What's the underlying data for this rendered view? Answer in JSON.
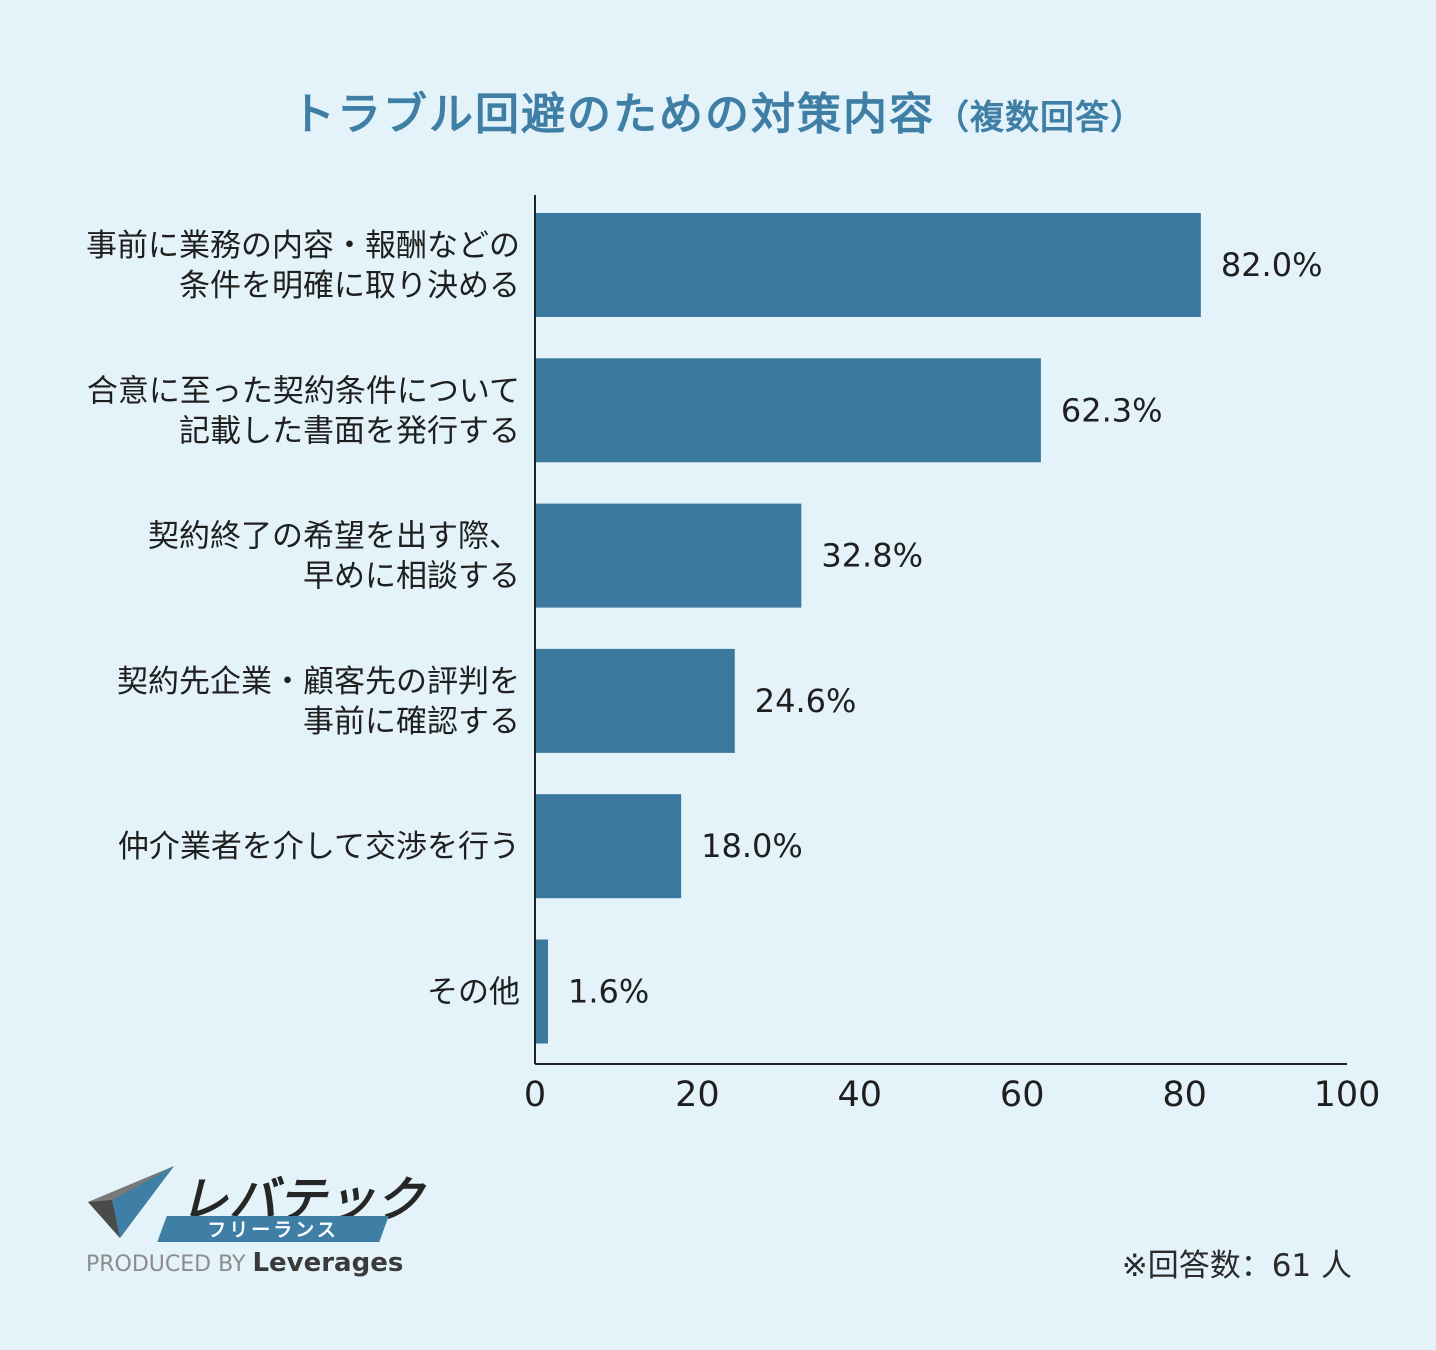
{
  "title": "トラブル回避のための対策内容",
  "subtitle": "（複数回答）",
  "chart_data": {
    "type": "bar",
    "orientation": "horizontal",
    "title": "トラブル回避のための対策内容（複数回答）",
    "categories": [
      [
        "事前に業務の内容・報酬などの",
        "条件を明確に取り決める"
      ],
      [
        "合意に至った契約条件について",
        "記載した書面を発行する"
      ],
      [
        "契約終了の希望を出す際、",
        "早めに相談する"
      ],
      [
        "契約先企業・顧客先の評判を",
        "事前に確認する"
      ],
      [
        "仲介業者を介して交渉を行う"
      ],
      [
        "その他"
      ]
    ],
    "values": [
      82.0,
      62.3,
      32.8,
      24.6,
      18.0,
      1.6
    ],
    "value_labels": [
      "82.0%",
      "62.3%",
      "32.8%",
      "24.6%",
      "18.0%",
      "1.6%"
    ],
    "xlim": [
      0,
      100
    ],
    "xticks": [
      0,
      20,
      40,
      60,
      80,
      100
    ],
    "xlabel": "",
    "ylabel": "",
    "grid": false,
    "bar_color": "#3b789d"
  },
  "logo": {
    "name": "レバテック",
    "sub": "フリーランス",
    "produced_by": "PRODUCED BY",
    "company": "Leverages"
  },
  "footnote": "※回答数：61 人",
  "colors": {
    "background": "#e3f3f9",
    "title": "#3f7fa6",
    "bar": "#3b789d"
  }
}
